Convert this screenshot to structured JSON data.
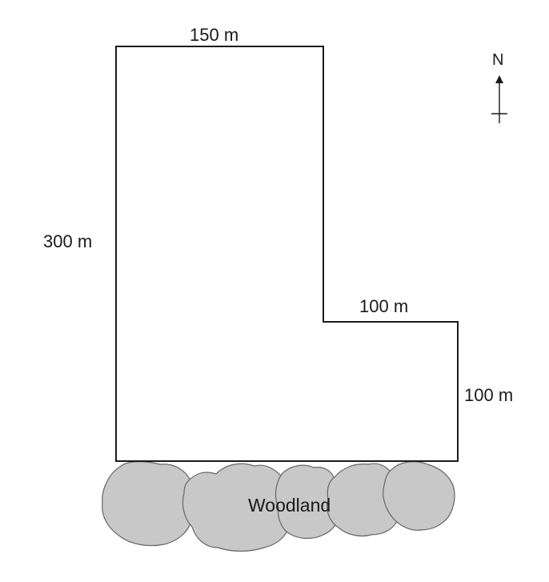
{
  "labels": {
    "top_side": "150 m",
    "left_side": "300 m",
    "inner_side": "100 m",
    "right_side": "100 m",
    "woodland": "Woodland",
    "north": "N"
  },
  "colors": {
    "outline": "#1a1a1a",
    "woodland_fill": "#c8c8c8",
    "woodland_stroke": "#666666"
  },
  "icons": {
    "north_arrow": "north-arrow-icon"
  }
}
